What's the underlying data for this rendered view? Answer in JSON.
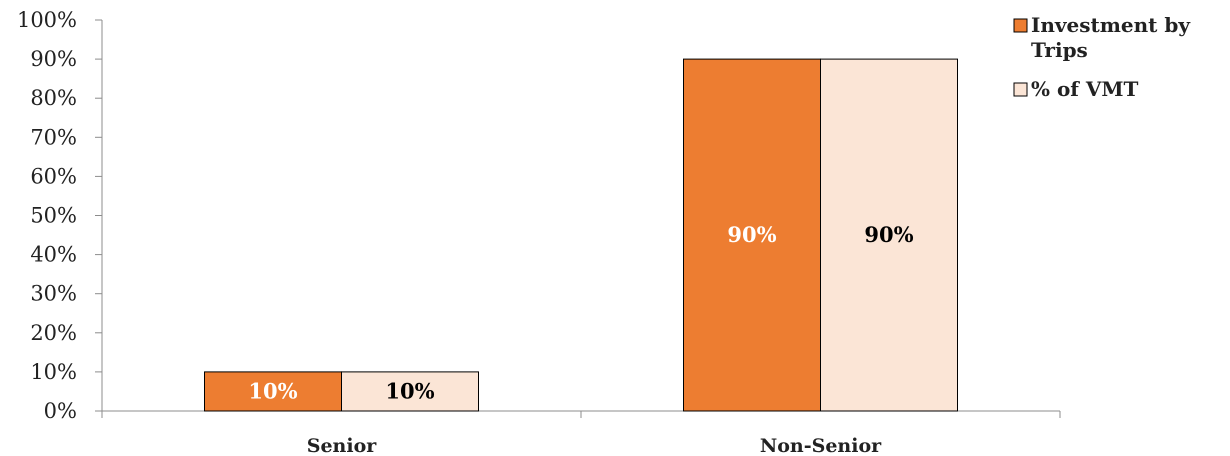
{
  "chart_data": {
    "type": "bar",
    "categories": [
      "Senior",
      "Non-Senior"
    ],
    "series": [
      {
        "name": "Investment by Trips",
        "values": [
          10,
          90
        ],
        "color": "#ED7D31",
        "label_color": "#ffffff"
      },
      {
        "name": "% of VMT",
        "values": [
          10,
          90
        ],
        "color": "#FBE5D6",
        "label_color": "#000000"
      }
    ],
    "data_labels": [
      [
        "10%",
        "90%"
      ],
      [
        "10%",
        "90%"
      ]
    ],
    "y_ticks": [
      "0%",
      "10%",
      "20%",
      "30%",
      "40%",
      "50%",
      "60%",
      "70%",
      "80%",
      "90%",
      "100%"
    ],
    "ylim": [
      0,
      100
    ],
    "grid": false,
    "legend_position": "top-right",
    "legend_lines": [
      [
        "Investment by",
        "Trips"
      ],
      [
        "% of VMT"
      ]
    ]
  }
}
